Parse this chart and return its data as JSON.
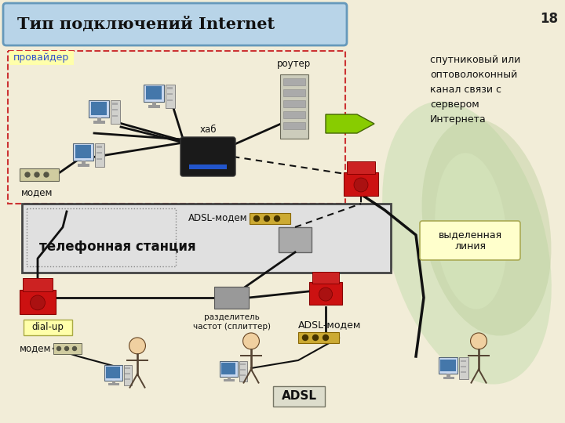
{
  "bg_color": "#f2edd8",
  "title_text": "Тип подключений Internet",
  "title_box_color": "#b8d4e8",
  "title_box_edge": "#6699bb",
  "page_number": "18",
  "provider_label": "провайдер",
  "provider_label_color": "#3355cc",
  "modem_label": "модем",
  "hub_label": "хаб",
  "router_label": "роутер",
  "adsl_station_label": "телефонная станция",
  "adsl_modem_label1": "ADSL-модем",
  "adsl_modem_label2": "ADSL-модем",
  "adsl_label": "ADSL",
  "splitter_label": "разделитель\nчастот (сплиттер)",
  "dialup_label": "dial-up",
  "modem_label2": "модем",
  "satellite_text": "спутниковый или\nоптоволоконный\nканал связи с\nсервером\nИнтернета",
  "dedicated_label": "выделенная\nлиния",
  "dedicated_box_color": "#ffffcc",
  "arrow_green_color": "#88cc00",
  "line_color": "#111111",
  "adsl_modem_rect_color": "#ccaa33",
  "provider_box_edge": "#cc3333",
  "station_box_color": "#e0e0e0"
}
